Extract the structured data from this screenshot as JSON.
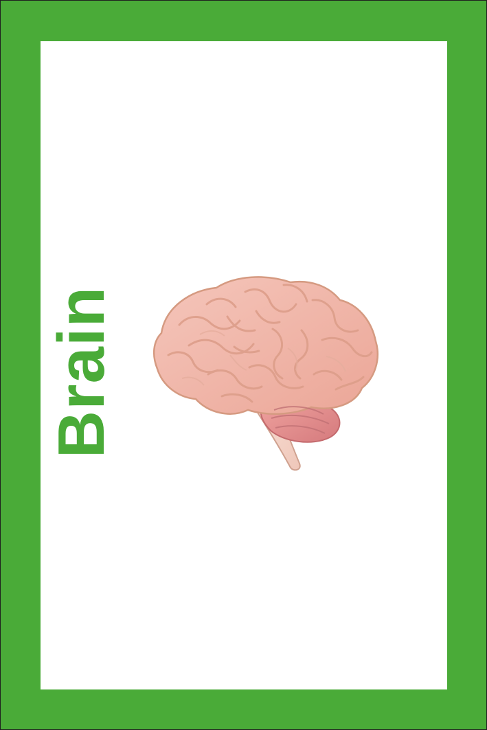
{
  "card": {
    "title": "Brain",
    "image": "brain-illustration"
  },
  "colors": {
    "frame": "#4aab38",
    "title": "#4aab38",
    "panel": "#ffffff",
    "brain_fill": "#f2b8ab",
    "brain_outline": "#d0997e",
    "cerebellum": "#e08d8d",
    "brainstem": "#f4d3c8"
  }
}
